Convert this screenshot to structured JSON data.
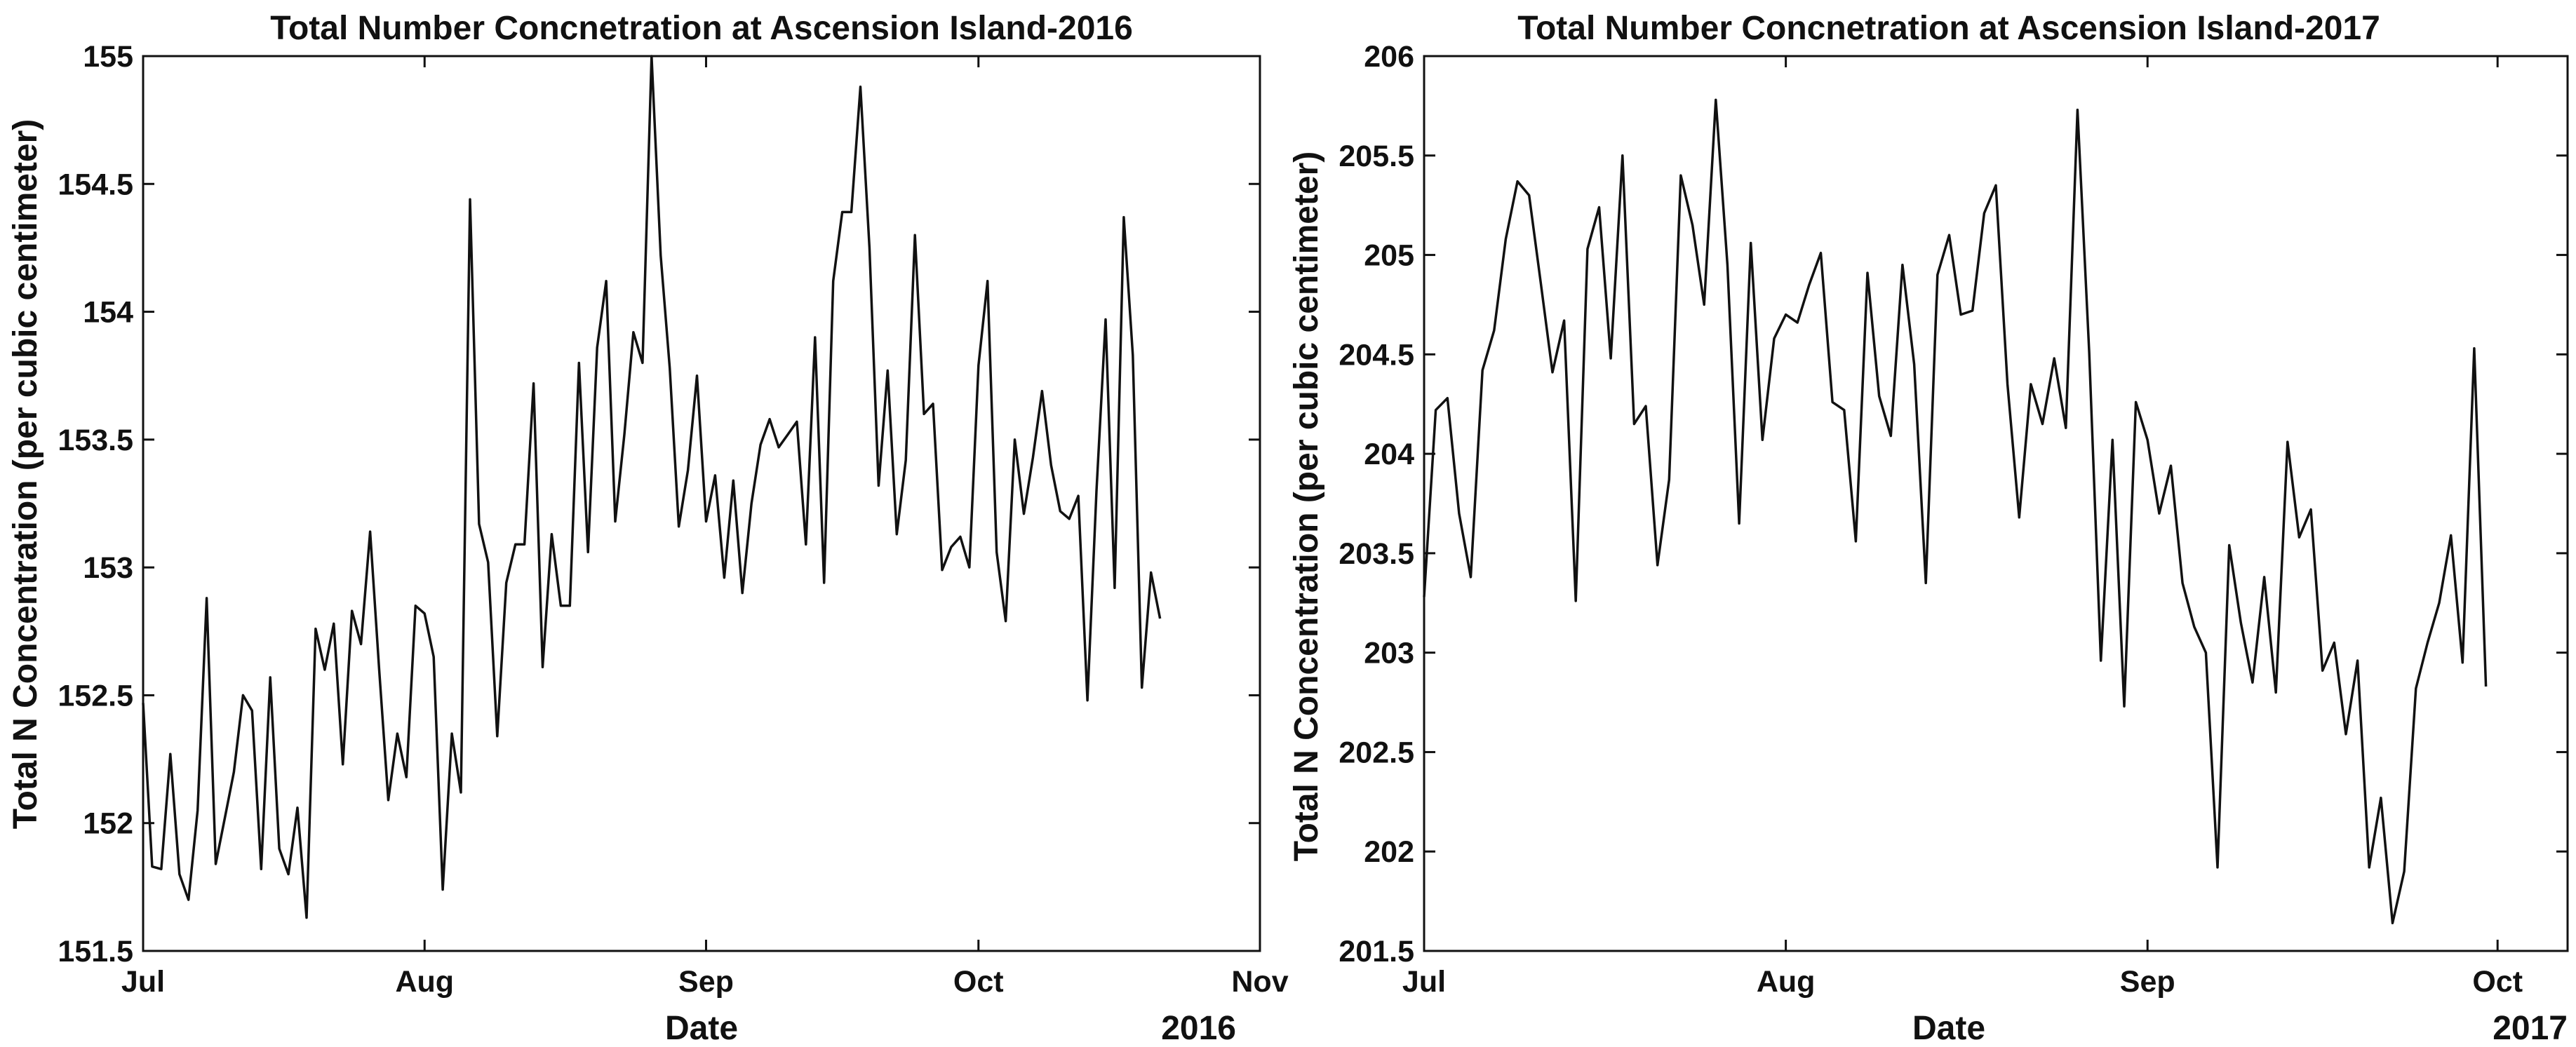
{
  "chart_data": [
    {
      "type": "line",
      "title": "Total Number Concnetration at Ascension Island-2016",
      "xlabel": "Date",
      "ylabel": "Total N Concentration (per cubic centimeter)",
      "year_label": "2016",
      "x_ticks": [
        "Jul",
        "Aug",
        "Sep",
        "Oct",
        "Nov"
      ],
      "x_tick_dates": [
        "2016-07-01",
        "2016-08-01",
        "2016-09-01",
        "2016-10-01",
        "2016-11-01"
      ],
      "xlim": [
        "2016-07-01",
        "2016-11-01"
      ],
      "y_ticks": [
        "151.5",
        "152",
        "152.5",
        "153",
        "153.5",
        "154",
        "154.5",
        "155"
      ],
      "ylim": [
        151.5,
        155
      ],
      "grid": false,
      "line_color": "#111111",
      "series": [
        {
          "start_date": "2016-07-01",
          "step_days": 1,
          "values": [
            152.47,
            151.83,
            151.82,
            152.27,
            151.8,
            151.7,
            152.05,
            152.88,
            151.84,
            152.02,
            152.2,
            152.5,
            152.44,
            151.82,
            152.57,
            151.9,
            151.8,
            152.06,
            151.63,
            152.76,
            152.6,
            152.78,
            152.23,
            152.83,
            152.7,
            153.14,
            152.6,
            152.09,
            152.35,
            152.18,
            152.85,
            152.82,
            152.65,
            151.74,
            152.35,
            152.12,
            154.44,
            153.17,
            153.02,
            152.34,
            152.94,
            153.09,
            153.09,
            153.72,
            152.61,
            153.13,
            152.85,
            152.85,
            153.8,
            153.06,
            153.86,
            154.12,
            153.18,
            153.52,
            153.92,
            153.8,
            155.0,
            154.22,
            153.78,
            153.16,
            153.38,
            153.75,
            153.18,
            153.36,
            152.96,
            153.34,
            152.9,
            153.25,
            153.48,
            153.58,
            153.47,
            153.52,
            153.57,
            153.09,
            153.9,
            152.94,
            154.12,
            154.39,
            154.39,
            154.88,
            154.25,
            153.32,
            153.77,
            153.13,
            153.42,
            154.3,
            153.6,
            153.64,
            152.99,
            153.08,
            153.12,
            153.0,
            153.79,
            154.12,
            153.06,
            152.79,
            153.5,
            153.21,
            153.43,
            153.69,
            153.4,
            153.22,
            153.19,
            153.28,
            152.48,
            153.3,
            153.97,
            152.92,
            154.37,
            153.83,
            152.53,
            152.98,
            152.8
          ]
        }
      ]
    },
    {
      "type": "line",
      "title": "Total Number Concnetration at Ascension Island-2017",
      "xlabel": "Date",
      "ylabel": "Total N Concentration (per cubic centimeter)",
      "year_label": "2017",
      "x_ticks": [
        "Jul",
        "Aug",
        "Sep",
        "Oct"
      ],
      "x_tick_dates": [
        "2017-07-01",
        "2017-08-01",
        "2017-09-01",
        "2017-10-01"
      ],
      "xlim": [
        "2017-07-01",
        "2017-10-07"
      ],
      "y_ticks": [
        "201.5",
        "202",
        "202.5",
        "203",
        "203.5",
        "204",
        "204.5",
        "205",
        "205.5",
        "206"
      ],
      "ylim": [
        201.5,
        206
      ],
      "grid": false,
      "line_color": "#111111",
      "series": [
        {
          "start_date": "2017-07-01",
          "step_days": 1,
          "values": [
            203.28,
            204.22,
            204.28,
            203.7,
            203.38,
            204.42,
            204.62,
            205.08,
            205.37,
            205.3,
            204.86,
            204.41,
            204.67,
            203.26,
            205.03,
            205.24,
            204.48,
            205.5,
            204.15,
            204.24,
            203.44,
            203.87,
            205.4,
            205.15,
            204.75,
            205.78,
            204.95,
            203.65,
            205.06,
            204.07,
            204.58,
            204.7,
            204.66,
            204.85,
            205.01,
            204.26,
            204.22,
            203.56,
            204.91,
            204.29,
            204.09,
            204.95,
            204.45,
            203.35,
            204.9,
            205.1,
            204.7,
            204.72,
            205.21,
            205.35,
            204.35,
            203.68,
            204.35,
            204.15,
            204.48,
            204.13,
            205.73,
            204.51,
            202.96,
            204.07,
            202.73,
            204.26,
            204.07,
            203.7,
            203.94,
            203.35,
            203.13,
            203.0,
            201.92,
            203.54,
            203.15,
            202.85,
            203.38,
            202.8,
            204.06,
            203.58,
            203.72,
            202.91,
            203.05,
            202.59,
            202.96,
            201.92,
            202.27,
            201.64,
            201.9,
            202.82,
            203.05,
            203.25,
            203.59,
            202.95,
            204.53,
            202.83
          ]
        }
      ]
    }
  ]
}
